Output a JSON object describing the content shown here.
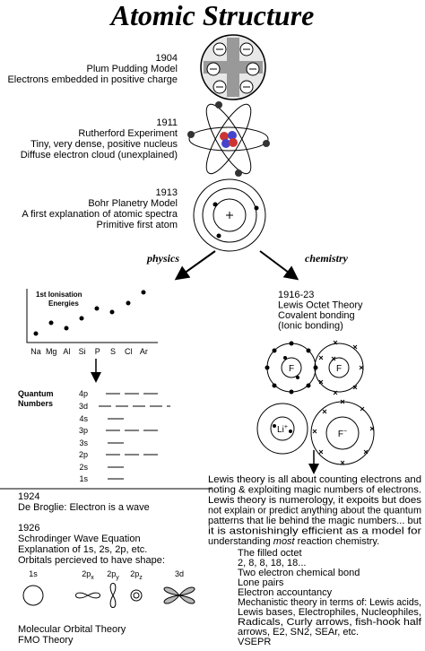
{
  "title": "Atomic Structure",
  "models": [
    {
      "year": "1904",
      "lines": [
        "Plum Pudding Model",
        "Electrons embedded in positive charge"
      ]
    },
    {
      "year": "1911",
      "lines": [
        "Rutherford Experiment",
        "Tiny, very dense, positive nucleus",
        "Diffuse electron cloud (unexplained)"
      ]
    },
    {
      "year": "1913",
      "lines": [
        "Bohr Planetry Model",
        "A first explanation of atomic spectra",
        "Primitive first atom"
      ]
    }
  ],
  "branches": {
    "left": "physics",
    "right": "chemistry"
  },
  "ionisation": {
    "title_lines": [
      "1st Ionisation",
      "Energies"
    ],
    "elements": [
      "Na",
      "Mg",
      "Al",
      "Si",
      "P",
      "S",
      "Cl",
      "Ar"
    ]
  },
  "quantum": {
    "label_lines": [
      "Quantum",
      "Numbers"
    ],
    "levels": [
      "4p",
      "3d",
      "4s",
      "3p",
      "3s",
      "2p",
      "2s",
      "1s"
    ]
  },
  "physics": {
    "lines": [
      "1924",
      "De Broglie: Electron is a wave",
      "1926",
      "Schrodinger Wave Equation",
      "Explanation of 1s, 2s, 2p, etc.",
      "Orbitals percieved to have shape:"
    ],
    "orbitals": [
      {
        "text": "1s"
      },
      {
        "text": "2p",
        "sub": "x"
      },
      {
        "text": "2p",
        "sub": "y"
      },
      {
        "text": "2p",
        "sub": "z"
      },
      {
        "text": "3d"
      }
    ],
    "theories": [
      "Molecular Orbital Theory",
      "FMO Theory"
    ]
  },
  "chemistry": {
    "lines": [
      "1916-23",
      "Lewis Octet Theory",
      "Covalent bonding",
      "(Ionic bonding)"
    ],
    "atoms": [
      {
        "text": "F"
      },
      {
        "text": "F"
      },
      {
        "text": "Li",
        "sup": "+"
      },
      {
        "text": "F",
        "sup": "−"
      }
    ],
    "paragraph": [
      "Lewis theory is all about counting electrons and",
      "noting & exploiting magic numbers of electrons.",
      "Lewis theory is numerology, it expoits but does",
      "not explain or predict anything about the quantum",
      "patterns that lie behind the magic numbers... but",
      "it is astonishingly efficient as a model for"
    ],
    "emphasis_line": {
      "before": "understanding ",
      "em": "most",
      "after": " reaction chemistry."
    },
    "list": [
      "The filled octet",
      "2, 8, 8, 18, 18...",
      "Two electron chemical bond",
      "Lone pairs",
      "Electron accountancy",
      "Mechanistic theory in terms of: Lewis acids,",
      "Lewis bases, Electrophiles, Nucleophiles,",
      "Radicals, Curly arrows, fish-hook half",
      "arrows, E2, SN2, SEAr, etc.",
      "VSEPR"
    ]
  }
}
